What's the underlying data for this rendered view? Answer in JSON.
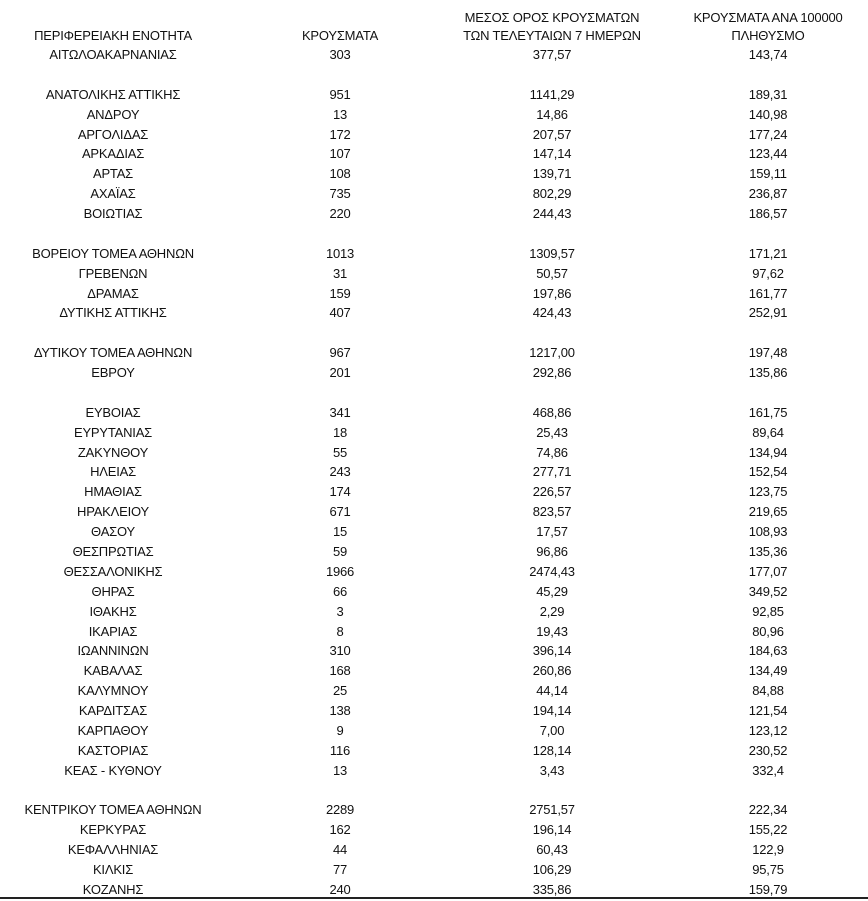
{
  "table": {
    "header": [
      [
        "ΠΕΡΙΦΕΡΕΙΑΚΗ ΕΝΟΤΗΤΑ"
      ],
      [
        "ΚΡΟΥΣΜΑΤΑ"
      ],
      [
        "ΜΕΣΟΣ ΟΡΟΣ ΚΡΟΥΣΜΑΤΩΝ",
        "ΤΩΝ ΤΕΛΕΥΤΑΙΩΝ 7 ΗΜΕΡΩΝ"
      ],
      [
        "ΚΡΟΥΣΜΑΤΑ ΑΝΑ 100000",
        "ΠΛΗΘΥΣΜΟ"
      ]
    ],
    "groups": [
      [
        [
          "ΑΙΤΩΛΟΑΚΑΡΝΑΝΙΑΣ",
          "303",
          "377,57",
          "143,74"
        ]
      ],
      [
        [
          "ΑΝΑΤΟΛΙΚΗΣ ΑΤΤΙΚΗΣ",
          "951",
          "1141,29",
          "189,31"
        ],
        [
          "ΑΝΔΡΟΥ",
          "13",
          "14,86",
          "140,98"
        ],
        [
          "ΑΡΓΟΛΙΔΑΣ",
          "172",
          "207,57",
          "177,24"
        ],
        [
          "ΑΡΚΑΔΙΑΣ",
          "107",
          "147,14",
          "123,44"
        ],
        [
          "ΑΡΤΑΣ",
          "108",
          "139,71",
          "159,11"
        ],
        [
          "ΑΧΑΪΑΣ",
          "735",
          "802,29",
          "236,87"
        ],
        [
          "ΒΟΙΩΤΙΑΣ",
          "220",
          "244,43",
          "186,57"
        ]
      ],
      [
        [
          "ΒΟΡΕΙΟΥ ΤΟΜΕΑ ΑΘΗΝΩΝ",
          "1013",
          "1309,57",
          "171,21"
        ],
        [
          "ΓΡΕΒΕΝΩΝ",
          "31",
          "50,57",
          "97,62"
        ],
        [
          "ΔΡΑΜΑΣ",
          "159",
          "197,86",
          "161,77"
        ],
        [
          "ΔΥΤΙΚΗΣ ΑΤΤΙΚΗΣ",
          "407",
          "424,43",
          "252,91"
        ]
      ],
      [
        [
          "ΔΥΤΙΚΟΥ ΤΟΜΕΑ ΑΘΗΝΩΝ",
          "967",
          "1217,00",
          "197,48"
        ],
        [
          "ΕΒΡΟΥ",
          "201",
          "292,86",
          "135,86"
        ]
      ],
      [
        [
          "ΕΥΒΟΙΑΣ",
          "341",
          "468,86",
          "161,75"
        ],
        [
          "ΕΥΡΥΤΑΝΙΑΣ",
          "18",
          "25,43",
          "89,64"
        ],
        [
          "ΖΑΚΥΝΘΟΥ",
          "55",
          "74,86",
          "134,94"
        ],
        [
          "ΗΛΕΙΑΣ",
          "243",
          "277,71",
          "152,54"
        ],
        [
          "ΗΜΑΘΙΑΣ",
          "174",
          "226,57",
          "123,75"
        ],
        [
          "ΗΡΑΚΛΕΙΟΥ",
          "671",
          "823,57",
          "219,65"
        ],
        [
          "ΘΑΣΟΥ",
          "15",
          "17,57",
          "108,93"
        ],
        [
          "ΘΕΣΠΡΩΤΙΑΣ",
          "59",
          "96,86",
          "135,36"
        ],
        [
          "ΘΕΣΣΑΛΟΝΙΚΗΣ",
          "1966",
          "2474,43",
          "177,07"
        ],
        [
          "ΘΗΡΑΣ",
          "66",
          "45,29",
          "349,52"
        ],
        [
          "ΙΘΑΚΗΣ",
          "3",
          "2,29",
          "92,85"
        ],
        [
          "ΙΚΑΡΙΑΣ",
          "8",
          "19,43",
          "80,96"
        ],
        [
          "ΙΩΑΝΝΙΝΩΝ",
          "310",
          "396,14",
          "184,63"
        ],
        [
          "ΚΑΒΑΛΑΣ",
          "168",
          "260,86",
          "134,49"
        ],
        [
          "ΚΑΛΥΜΝΟΥ",
          "25",
          "44,14",
          "84,88"
        ],
        [
          "ΚΑΡΔΙΤΣΑΣ",
          "138",
          "194,14",
          "121,54"
        ],
        [
          "ΚΑΡΠΑΘΟΥ",
          "9",
          "7,00",
          "123,12"
        ],
        [
          "ΚΑΣΤΟΡΙΑΣ",
          "116",
          "128,14",
          "230,52"
        ],
        [
          "ΚΕΑΣ - ΚΥΘΝΟΥ",
          "13",
          "3,43",
          "332,4"
        ]
      ],
      [
        [
          "ΚΕΝΤΡΙΚΟΥ ΤΟΜΕΑ ΑΘΗΝΩΝ",
          "2289",
          "2751,57",
          "222,34"
        ],
        [
          "ΚΕΡΚΥΡΑΣ",
          "162",
          "196,14",
          "155,22"
        ],
        [
          "ΚΕΦΑΛΛΗΝΙΑΣ",
          "44",
          "60,43",
          "122,9"
        ],
        [
          "ΚΙΛΚΙΣ",
          "77",
          "106,29",
          "95,75"
        ],
        [
          "ΚΟΖΑΝΗΣ",
          "240",
          "335,86",
          "159,79"
        ]
      ]
    ]
  }
}
